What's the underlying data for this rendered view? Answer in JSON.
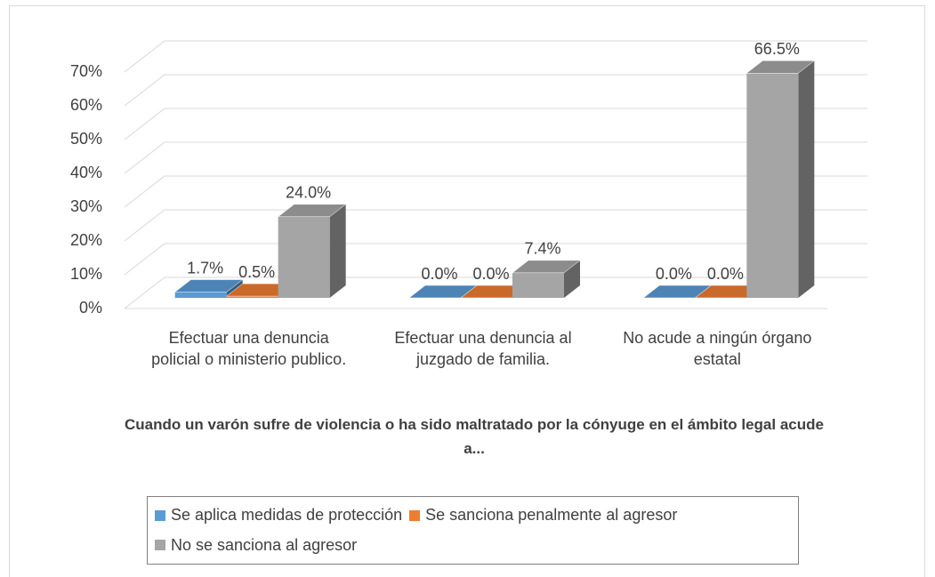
{
  "chart_data": {
    "type": "bar3d",
    "title": "Cuando un varón sufre de violencia o ha sido maltratado por la cónyuge en el ámbito legal acude a...",
    "categories": [
      "Efectuar una denuncia policial o ministerio publico.",
      "Efectuar una denuncia al juzgado de familia.",
      "No acude a ningún órgano estatal"
    ],
    "series": [
      {
        "name": "Se aplica medidas de protección",
        "color": "#5b9bd5",
        "values": [
          1.7,
          0.0,
          0.0
        ],
        "value_labels": [
          "1.7%",
          "0.0%",
          "0.0%"
        ]
      },
      {
        "name": "Se sanciona penalmente al agresor",
        "color": "#ed7d31",
        "values": [
          0.5,
          0.0,
          0.0
        ],
        "value_labels": [
          "0.5%",
          "0.0%",
          "0.0%"
        ]
      },
      {
        "name": "No se sanciona al agresor",
        "color": "#a5a5a5",
        "values": [
          24.0,
          7.4,
          66.5
        ],
        "value_labels": [
          "24.0%",
          "7.4%",
          "66.5%"
        ]
      }
    ],
    "ylim": [
      0,
      70
    ],
    "yticks": [
      {
        "value": 0,
        "label": "0%"
      },
      {
        "value": 10,
        "label": "10%"
      },
      {
        "value": 20,
        "label": "20%"
      },
      {
        "value": 30,
        "label": "30%"
      },
      {
        "value": 40,
        "label": "40%"
      },
      {
        "value": 50,
        "label": "50%"
      },
      {
        "value": 60,
        "label": "60%"
      },
      {
        "value": 70,
        "label": "70%"
      }
    ],
    "grid": true,
    "legend": "bottom"
  }
}
